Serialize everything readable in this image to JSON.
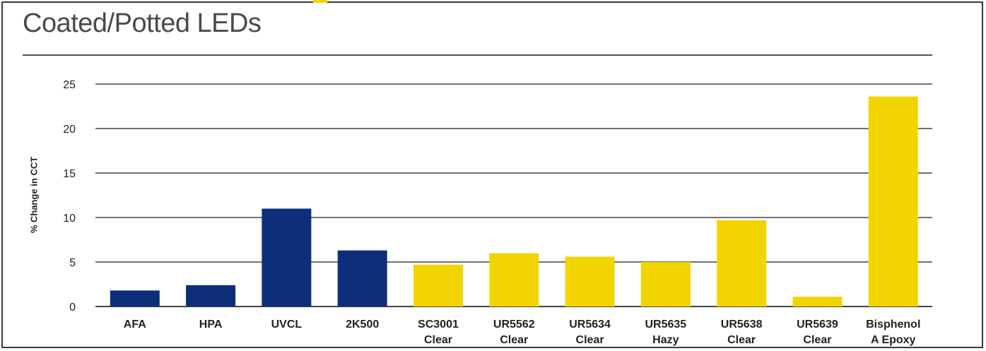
{
  "colors": {
    "frame": "#3a3a3a",
    "navy": "#0d2f7a",
    "yellow": "#f2d400",
    "grid": "#444444",
    "text": "#222222"
  },
  "chart_data": {
    "type": "bar",
    "title": "Coated/Potted LEDs",
    "xlabel": "",
    "ylabel": "% Change in CCT",
    "ylim": [
      0,
      25
    ],
    "yticks": [
      0,
      5,
      10,
      15,
      20,
      25
    ],
    "grid": true,
    "categories": [
      [
        "AFA"
      ],
      [
        "HPA"
      ],
      [
        "UVCL"
      ],
      [
        "2K500"
      ],
      [
        "SC3001",
        "Clear"
      ],
      [
        "UR5562",
        "Clear"
      ],
      [
        "UR5634",
        "Clear"
      ],
      [
        "UR5635",
        "Hazy"
      ],
      [
        "UR5638",
        "Clear"
      ],
      [
        "UR5639",
        "Clear"
      ],
      [
        "Bisphenol",
        "A Epoxy"
      ]
    ],
    "values": [
      1.8,
      2.4,
      11.0,
      6.3,
      4.7,
      6.0,
      5.6,
      5.0,
      9.7,
      1.1,
      23.6
    ],
    "bar_colors": [
      "#0d2f7a",
      "#0d2f7a",
      "#0d2f7a",
      "#0d2f7a",
      "#f2d400",
      "#f2d400",
      "#f2d400",
      "#f2d400",
      "#f2d400",
      "#f2d400",
      "#f2d400"
    ]
  }
}
